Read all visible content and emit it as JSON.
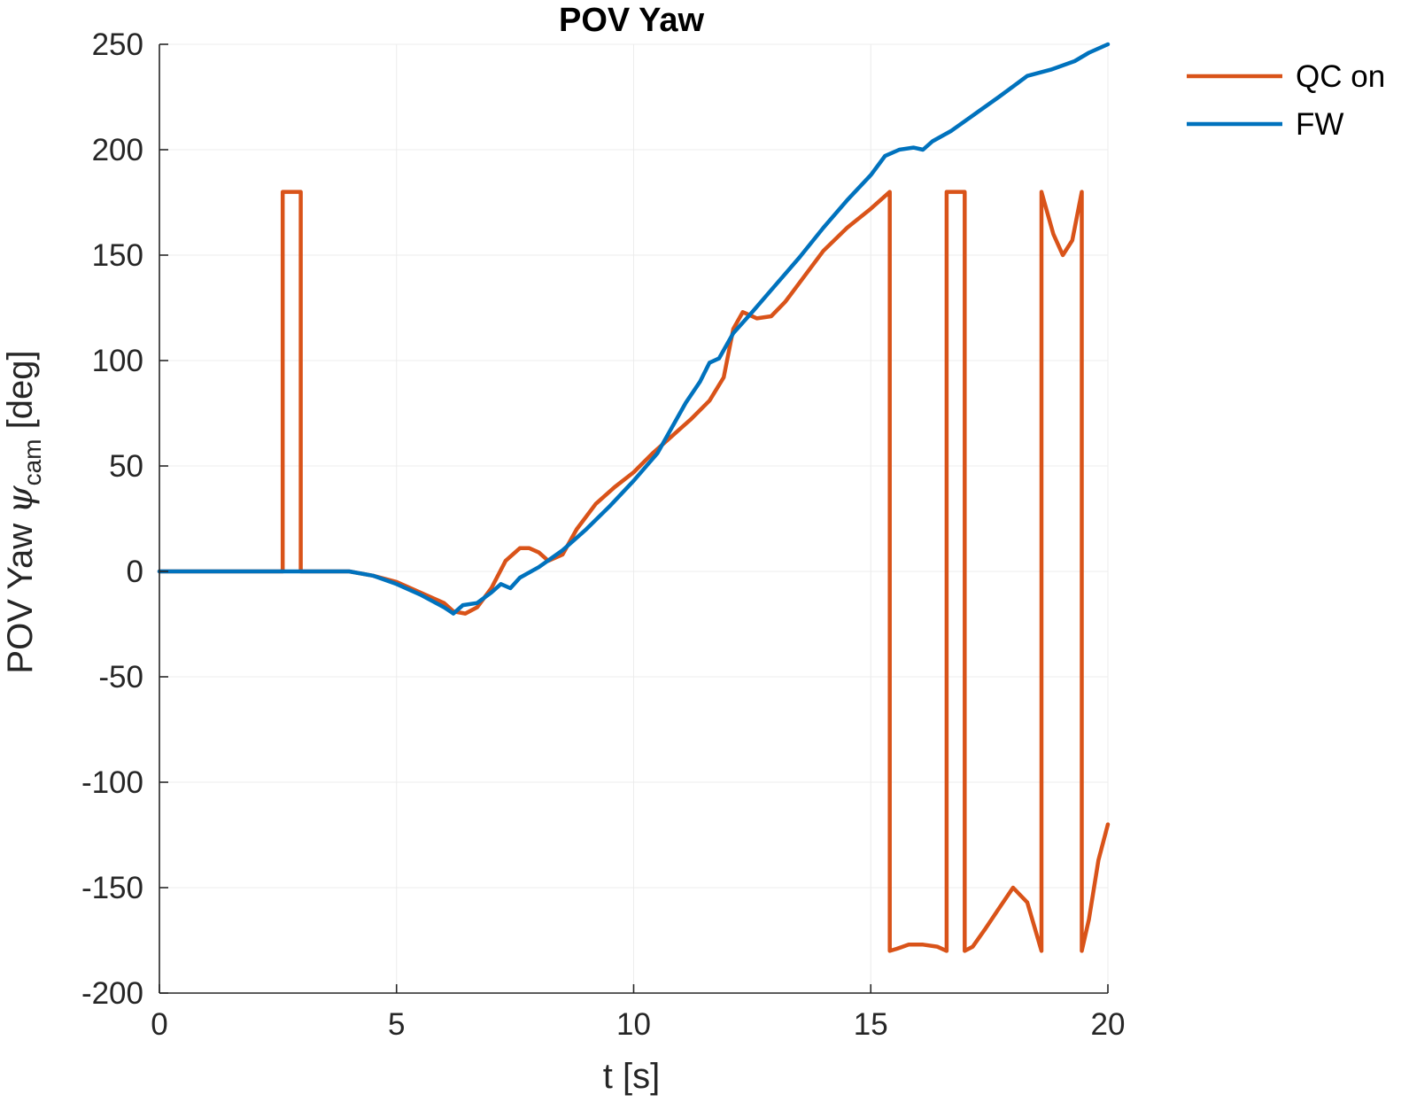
{
  "chart_data": {
    "type": "line",
    "title": "POV Yaw",
    "xlabel": "t [s]",
    "ylabel": {
      "prefix": "POV Yaw ",
      "symbol": "ψ",
      "subscript": "cam",
      "suffix": " [deg]"
    },
    "xlim": [
      0,
      20
    ],
    "ylim": [
      -200,
      250
    ],
    "xticks": [
      0,
      5,
      10,
      15,
      20
    ],
    "yticks": [
      -200,
      -150,
      -100,
      -50,
      0,
      50,
      100,
      150,
      200,
      250
    ],
    "grid": true,
    "legend_position": "top-right-outside",
    "series": [
      {
        "name": "QC on",
        "color": "#d95319",
        "x": [
          0,
          2.6,
          2.6,
          2.98,
          2.98,
          4.0,
          4.5,
          5.0,
          5.5,
          6.0,
          6.2,
          6.45,
          6.7,
          7.0,
          7.3,
          7.6,
          7.8,
          8.0,
          8.2,
          8.5,
          8.8,
          9.2,
          9.6,
          10.0,
          10.4,
          10.8,
          11.2,
          11.6,
          11.9,
          12.1,
          12.3,
          12.4,
          12.6,
          12.9,
          13.2,
          13.6,
          14.0,
          14.5,
          15.0,
          15.4,
          15.4,
          15.55,
          15.8,
          16.1,
          16.4,
          16.6,
          16.6,
          16.98,
          16.98,
          17.15,
          17.4,
          17.7,
          18.0,
          18.3,
          18.6,
          18.6,
          18.85,
          19.05,
          19.25,
          19.45,
          19.45,
          19.6,
          19.8,
          20.0
        ],
        "y": [
          0,
          0,
          180,
          180,
          0,
          0,
          -2,
          -5,
          -10,
          -15,
          -19,
          -20,
          -17,
          -8,
          5,
          11,
          11,
          9,
          5,
          8,
          20,
          32,
          40,
          47,
          56,
          64,
          72,
          81,
          92,
          115,
          123,
          122,
          120,
          121,
          128,
          140,
          152,
          163,
          172,
          180,
          -180,
          -179,
          -177,
          -177,
          -178,
          -180,
          180,
          180,
          -180,
          -178,
          -170,
          -160,
          -150,
          -157,
          -180,
          180,
          160,
          150,
          157,
          180,
          -180,
          -165,
          -137,
          -120
        ]
      },
      {
        "name": "FW",
        "color": "#0072bd",
        "x": [
          0,
          4.0,
          4.5,
          5.0,
          5.5,
          6.0,
          6.2,
          6.4,
          6.7,
          7.0,
          7.2,
          7.4,
          7.6,
          8.0,
          8.5,
          9.0,
          9.5,
          10.0,
          10.5,
          10.8,
          11.1,
          11.4,
          11.6,
          11.8,
          12.1,
          12.5,
          13.0,
          13.5,
          14.0,
          14.5,
          15.0,
          15.3,
          15.6,
          15.9,
          16.1,
          16.3,
          16.7,
          17.2,
          17.7,
          18.3,
          18.8,
          19.3,
          19.6,
          20.0
        ],
        "y": [
          0,
          0,
          -2,
          -6,
          -11,
          -17,
          -20,
          -16,
          -15,
          -10,
          -6,
          -8,
          -3,
          2,
          10,
          20,
          31,
          43,
          56,
          68,
          80,
          90,
          99,
          101,
          113,
          123,
          136,
          149,
          163,
          176,
          188,
          197,
          200,
          201,
          200,
          204,
          209,
          217,
          225,
          235,
          238,
          242,
          246,
          250
        ]
      }
    ]
  }
}
